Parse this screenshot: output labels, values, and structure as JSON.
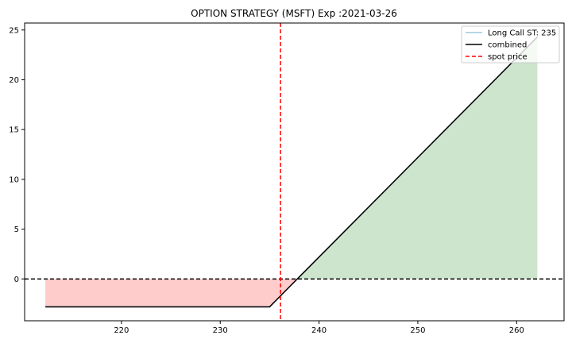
{
  "chart_data": {
    "type": "line",
    "title": "OPTION STRATEGY (MSFT)  Exp :2021-03-26",
    "xlabel": "",
    "ylabel": "",
    "xlim": [
      210.2,
      264.8
    ],
    "ylim": [
      -4.2,
      25.7
    ],
    "xticks": [
      220,
      230,
      240,
      250,
      260
    ],
    "yticks": [
      0,
      5,
      10,
      15,
      20,
      25
    ],
    "grid": false,
    "legend_position": "top-right",
    "series": [
      {
        "name": "Long Call ST: 235",
        "color": "#9ecae1",
        "style": "solid",
        "x": [
          212.3,
          235,
          262.1
        ],
        "y": [
          -2.8,
          -2.8,
          24.3
        ]
      },
      {
        "name": "combined",
        "color": "#000000",
        "style": "solid",
        "x": [
          212.3,
          235,
          262.1
        ],
        "y": [
          -2.8,
          -2.8,
          24.3
        ]
      }
    ],
    "spot_price": {
      "name": "spot price",
      "x": 236.1,
      "color": "#ff0000",
      "style": "dashed"
    },
    "zero_line": {
      "y": 0,
      "color": "#000000",
      "style": "dashed"
    },
    "fills": [
      {
        "region": "loss",
        "color": "#ffcccc",
        "x_from": 212.3,
        "x_to": 237.8
      },
      {
        "region": "profit",
        "color": "#cee5cd",
        "x_from": 237.8,
        "x_to": 262.1
      }
    ]
  }
}
